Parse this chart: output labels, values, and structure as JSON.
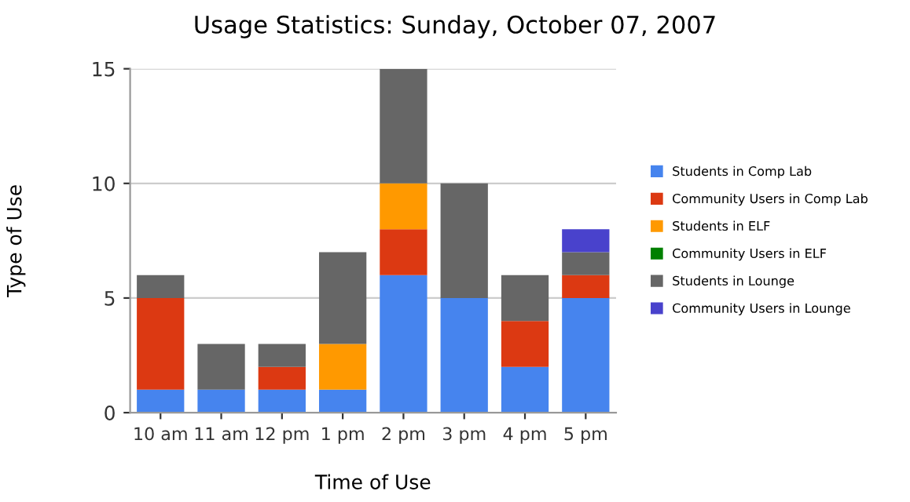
{
  "chart_data": {
    "type": "bar",
    "stacked": true,
    "title": "Usage Statistics: Sunday, October 07, 2007",
    "xlabel": "Time of Use",
    "ylabel": "Type of Use",
    "categories": [
      "10 am",
      "11 am",
      "12 pm",
      "1 pm",
      "2 pm",
      "3 pm",
      "4 pm",
      "5 pm"
    ],
    "series": [
      {
        "name": "Students in Comp Lab",
        "color": "#4684ee",
        "values": [
          1,
          1,
          1,
          1,
          6,
          5,
          2,
          5
        ]
      },
      {
        "name": "Community Users in Comp Lab",
        "color": "#dc3912",
        "values": [
          4,
          0,
          1,
          0,
          2,
          0,
          2,
          1
        ]
      },
      {
        "name": "Students in ELF",
        "color": "#ff9900",
        "values": [
          0,
          0,
          0,
          2,
          2,
          0,
          0,
          0
        ]
      },
      {
        "name": "Community Users in ELF",
        "color": "#008000",
        "values": [
          0,
          0,
          0,
          0,
          0,
          0,
          0,
          0
        ]
      },
      {
        "name": "Students in Lounge",
        "color": "#666666",
        "values": [
          1,
          2,
          1,
          4,
          5,
          5,
          2,
          1
        ]
      },
      {
        "name": "Community Users in Lounge",
        "color": "#4942cc",
        "values": [
          0,
          0,
          0,
          0,
          0,
          0,
          0,
          1
        ]
      }
    ],
    "ylim": [
      0,
      15
    ],
    "yticks": [
      0,
      5,
      10,
      15
    ],
    "grid": "y",
    "legend": "right"
  }
}
